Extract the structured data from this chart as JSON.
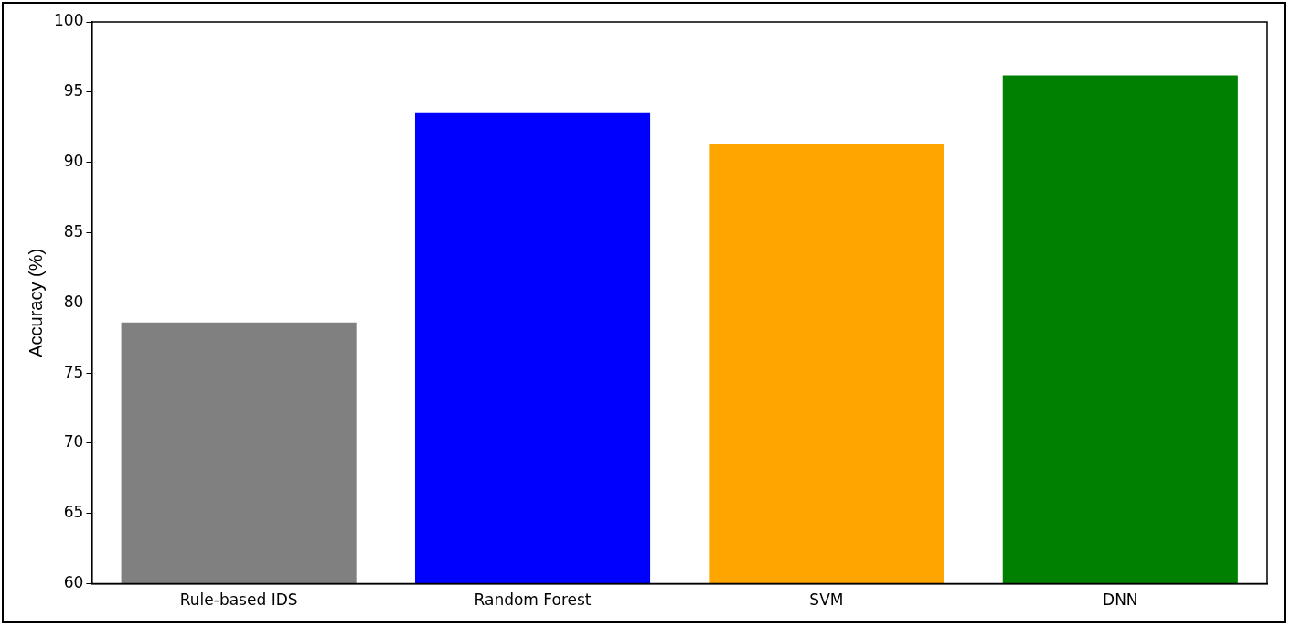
{
  "chart_data": {
    "type": "bar",
    "categories": [
      "Rule-based IDS",
      "Random Forest",
      "SVM",
      "DNN"
    ],
    "values": [
      78.6,
      93.5,
      91.3,
      96.2
    ],
    "colors": [
      "#808080",
      "#0000ff",
      "#ffa500",
      "#008000"
    ],
    "ylabel": "Accuracy (%)",
    "ylim": [
      60,
      100
    ],
    "yticks": [
      60,
      65,
      70,
      75,
      80,
      85,
      90,
      95,
      100
    ],
    "grid": false,
    "legend": false
  }
}
